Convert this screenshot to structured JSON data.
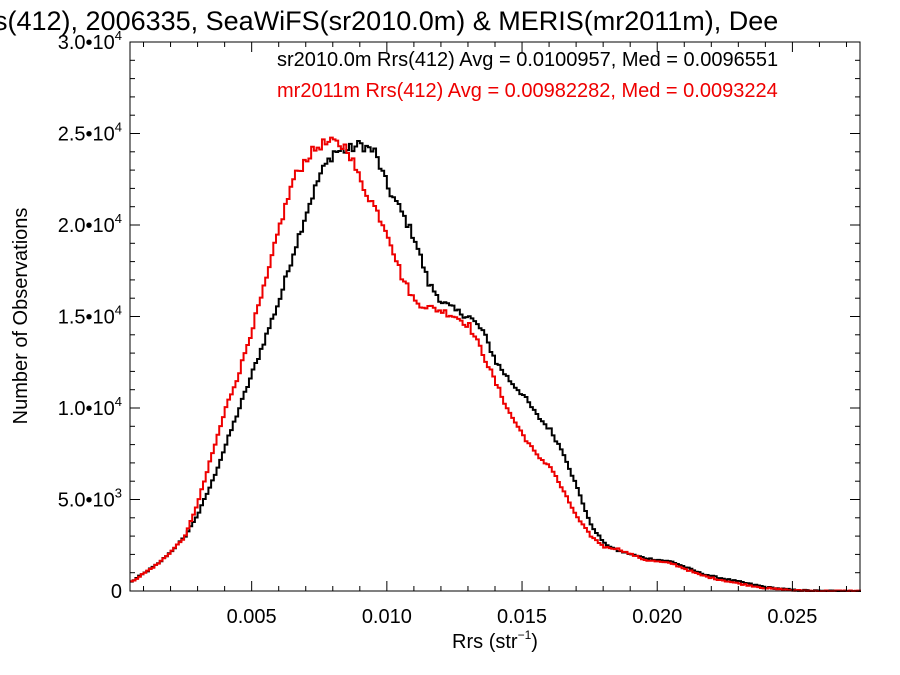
{
  "chart_data": {
    "type": "line",
    "title": "s(412), 2006335, SeaWiFS(sr2010.0m) & MERIS(mr2011m), Dee",
    "xlabel": "Rrs (str",
    "xlabel_sup": "−1",
    "xlabel_close": ")",
    "ylabel": "Number of Observations",
    "xlim": [
      0.0005,
      0.0275
    ],
    "ylim": [
      0,
      30000
    ],
    "x_ticks": [
      {
        "value": 0.005,
        "label": "0.005"
      },
      {
        "value": 0.01,
        "label": "0.010"
      },
      {
        "value": 0.015,
        "label": "0.015"
      },
      {
        "value": 0.02,
        "label": "0.020"
      },
      {
        "value": 0.025,
        "label": "0.025"
      }
    ],
    "y_ticks": [
      {
        "value": 0,
        "mantissa": "0",
        "exp": ""
      },
      {
        "value": 5000,
        "mantissa": "5.0•10",
        "exp": "3"
      },
      {
        "value": 10000,
        "mantissa": "1.0•10",
        "exp": "4"
      },
      {
        "value": 15000,
        "mantissa": "1.5•10",
        "exp": "4"
      },
      {
        "value": 20000,
        "mantissa": "2.0•10",
        "exp": "4"
      },
      {
        "value": 25000,
        "mantissa": "2.5•10",
        "exp": "4"
      },
      {
        "value": 30000,
        "mantissa": "3.0•10",
        "exp": "4"
      }
    ],
    "legend": [
      {
        "text": "sr2010.0m Rrs(412) Avg = 0.0100957, Med = 0.0096551",
        "color": "#000000"
      },
      {
        "text": "mr2011m Rrs(412) Avg = 0.00982282, Med = 0.0093224",
        "color": "#ee0000"
      }
    ],
    "series": [
      {
        "color": "#000000",
        "x": [
          0.0005,
          0.0015,
          0.002,
          0.0025,
          0.003,
          0.0035,
          0.004,
          0.0045,
          0.005,
          0.0055,
          0.006,
          0.0065,
          0.007,
          0.0075,
          0.008,
          0.0085,
          0.009,
          0.0095,
          0.01,
          0.0105,
          0.011,
          0.0115,
          0.012,
          0.0125,
          0.013,
          0.0135,
          0.014,
          0.0145,
          0.015,
          0.0155,
          0.016,
          0.0165,
          0.017,
          0.0175,
          0.018,
          0.0185,
          0.019,
          0.0195,
          0.02,
          0.0205,
          0.021,
          0.0215,
          0.022,
          0.023,
          0.024,
          0.025,
          0.026,
          0.0275
        ],
        "y": [
          500,
          1500,
          2200,
          3000,
          4300,
          6000,
          8000,
          10000,
          12000,
          14000,
          16000,
          18500,
          20800,
          22800,
          24000,
          24100,
          24400,
          24000,
          22000,
          20700,
          19200,
          16800,
          15800,
          15300,
          15000,
          14200,
          12500,
          11500,
          10700,
          9600,
          8800,
          7500,
          5600,
          3600,
          2600,
          2200,
          2000,
          1800,
          1700,
          1600,
          1300,
          1000,
          800,
          500,
          200,
          50,
          0,
          0
        ]
      },
      {
        "color": "#ee0000",
        "x": [
          0.0005,
          0.0015,
          0.002,
          0.0025,
          0.003,
          0.0035,
          0.004,
          0.0045,
          0.005,
          0.0055,
          0.006,
          0.0065,
          0.007,
          0.0075,
          0.008,
          0.0085,
          0.009,
          0.0095,
          0.01,
          0.0105,
          0.011,
          0.0115,
          0.012,
          0.0125,
          0.013,
          0.0135,
          0.014,
          0.0145,
          0.015,
          0.0155,
          0.016,
          0.0165,
          0.017,
          0.0175,
          0.018,
          0.0185,
          0.019,
          0.0195,
          0.02,
          0.0205,
          0.021,
          0.0215,
          0.022,
          0.023,
          0.024,
          0.025,
          0.026,
          0.0275
        ],
        "y": [
          500,
          1500,
          2200,
          3000,
          5000,
          7500,
          10000,
          12000,
          14500,
          17000,
          20000,
          22500,
          23700,
          24400,
          24500,
          24200,
          22300,
          21000,
          19500,
          17200,
          15800,
          15500,
          15300,
          15000,
          14500,
          13000,
          11300,
          9700,
          8500,
          7400,
          6800,
          5400,
          4000,
          3000,
          2400,
          2300,
          2000,
          1700,
          1600,
          1500,
          1200,
          900,
          700,
          400,
          150,
          30,
          0,
          0
        ]
      }
    ]
  }
}
